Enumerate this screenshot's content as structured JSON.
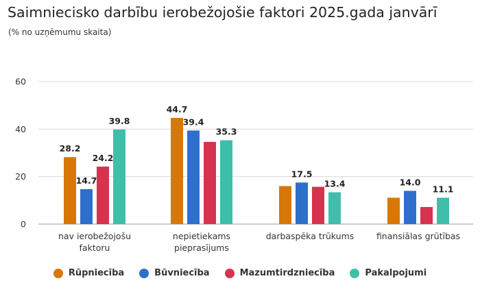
{
  "chart_data": {
    "type": "bar",
    "title": "Saimniecisko darbību ierobežojošie faktori 2025.gada janvārī",
    "subtitle": "(% no uzņēmumu skaita)",
    "categories": [
      [
        "nav ierobežojošu",
        "faktoru"
      ],
      [
        "nepietiekams",
        "pieprasījums"
      ],
      [
        "darbaspēka trūkums"
      ],
      [
        "finansiālas grūtības"
      ]
    ],
    "series": [
      {
        "name": "Rūpniecība",
        "color": "#d97706",
        "values": [
          28.2,
          44.7,
          16.0,
          11.1
        ],
        "labels": [
          "28.2",
          "44.7",
          "",
          ""
        ]
      },
      {
        "name": "Būvniecība",
        "color": "#2f6fcc",
        "values": [
          14.7,
          39.4,
          17.5,
          14.0
        ],
        "labels": [
          "14.7",
          "39.4",
          "17.5",
          "14.0"
        ]
      },
      {
        "name": "Mazumtirdzniecība",
        "color": "#d6334f",
        "values": [
          24.2,
          34.6,
          15.7,
          7.2
        ],
        "labels": [
          "24.2",
          "",
          "",
          ""
        ]
      },
      {
        "name": "Pakalpojumi",
        "color": "#3fbfaa",
        "values": [
          39.8,
          35.3,
          13.4,
          11.1
        ],
        "labels": [
          "39.8",
          "35.3",
          "13.4",
          "11.1"
        ]
      }
    ],
    "yticks": [
      0,
      20,
      40,
      60
    ],
    "ylim": [
      0,
      60
    ],
    "grid": true,
    "legend": "bottom"
  }
}
